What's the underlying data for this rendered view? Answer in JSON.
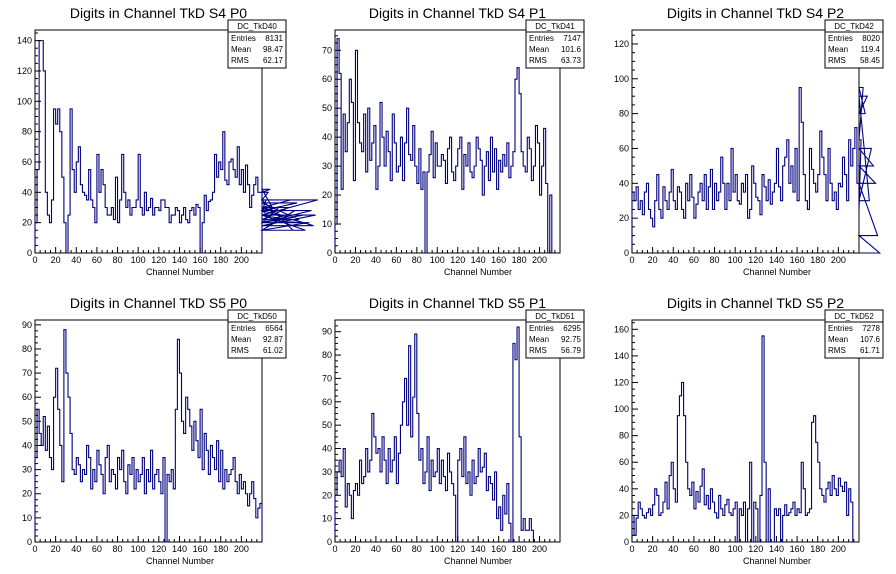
{
  "chart_data": [
    {
      "type": "histogram",
      "title": "Digits in Channel TkD S4 P0",
      "xlabel": "Channel Number",
      "ylabel": "",
      "xlim": [
        0,
        220
      ],
      "ylim": [
        0,
        147
      ],
      "xticks": [
        "0",
        "20",
        "40",
        "60",
        "80",
        "100",
        "120",
        "140",
        "160",
        "180",
        "200"
      ],
      "yticks": [
        "0",
        "20",
        "40",
        "60",
        "80",
        "100",
        "120",
        "140"
      ],
      "bin_width": 2,
      "color": "#000080",
      "stats": {
        "name": "DC_TkD40",
        "rows": [
          [
            "Entries",
            "8131"
          ],
          [
            "Mean",
            "98.47"
          ],
          [
            "RMS",
            "62.17"
          ]
        ]
      },
      "values": [
        20,
        55,
        140,
        140,
        120,
        40,
        25,
        20,
        35,
        95,
        85,
        95,
        80,
        50,
        20,
        0,
        25,
        95,
        55,
        40,
        60,
        70,
        45,
        40,
        38,
        35,
        55,
        35,
        30,
        20,
        65,
        40,
        55,
        45,
        30,
        25,
        25,
        30,
        22,
        50,
        20,
        35,
        65,
        40,
        30,
        35,
        25,
        30,
        30,
        35,
        65,
        30,
        25,
        40,
        28,
        30,
        36,
        25,
        30,
        30,
        28,
        35,
        35,
        30,
        30,
        20,
        25,
        25,
        30,
        28,
        20,
        25,
        30,
        22,
        20,
        28,
        30,
        25,
        32,
        30,
        0,
        20,
        38,
        28,
        34,
        35,
        40,
        65,
        50,
        60,
        55,
        80,
        48,
        45,
        60,
        62,
        55,
        50,
        70,
        45,
        55,
        40,
        58,
        45,
        30,
        38,
        45,
        50,
        40,
        40,
        30,
        28,
        35,
        40,
        42,
        30,
        28,
        20,
        30,
        25,
        20,
        25,
        22,
        30,
        35,
        15,
        28,
        33,
        22,
        20,
        25,
        15,
        20,
        20,
        28,
        18,
        25,
        35
      ]
    },
    {
      "type": "histogram",
      "title": "Digits in Channel TkD S4 P1",
      "xlabel": "Channel Number",
      "ylabel": "",
      "xlim": [
        0,
        220
      ],
      "ylim": [
        0,
        77
      ],
      "xticks": [
        "0",
        "20",
        "40",
        "60",
        "80",
        "100",
        "120",
        "140",
        "160",
        "180",
        "200"
      ],
      "yticks": [
        "0",
        "10",
        "20",
        "30",
        "40",
        "50",
        "60",
        "70"
      ],
      "bin_width": 2,
      "color": "#000080",
      "stats": {
        "name": "DC_TkD41",
        "rows": [
          [
            "Entries",
            "7147"
          ],
          [
            "Mean",
            "101.6"
          ],
          [
            "RMS",
            "63.73"
          ]
        ]
      },
      "values": [
        10,
        74,
        62,
        22,
        48,
        35,
        45,
        60,
        52,
        25,
        70,
        45,
        38,
        35,
        48,
        28,
        50,
        32,
        38,
        44,
        22,
        30,
        52,
        40,
        30,
        42,
        35,
        25,
        48,
        38,
        28,
        30,
        40,
        25,
        38,
        50,
        34,
        32,
        44,
        30,
        24,
        36,
        22,
        28,
        0,
        28,
        34,
        42,
        26,
        38,
        30,
        30,
        34,
        32,
        24,
        36,
        40,
        28,
        25,
        30,
        36,
        40,
        22,
        34,
        30,
        38,
        28,
        26,
        30,
        40,
        36,
        32,
        20,
        30,
        35,
        25,
        40,
        28,
        36,
        22,
        32,
        28,
        34,
        30,
        38,
        26,
        30,
        35,
        60,
        64,
        55,
        35,
        30,
        28,
        40,
        36,
        25,
        30,
        44,
        38,
        20,
        30,
        43,
        24,
        0,
        20
      ]
    },
    {
      "type": "histogram",
      "title": "Digits in Channel TkD S4 P2",
      "xlabel": "Channel Number",
      "ylabel": "",
      "xlim": [
        0,
        220
      ],
      "ylim": [
        0,
        128
      ],
      "xticks": [
        "0",
        "20",
        "40",
        "60",
        "80",
        "100",
        "120",
        "140",
        "160",
        "180",
        "200"
      ],
      "yticks": [
        "0",
        "20",
        "40",
        "60",
        "80",
        "100",
        "120"
      ],
      "bin_width": 2,
      "color": "#000080",
      "stats": {
        "name": "DC_TkD42",
        "rows": [
          [
            "Entries",
            "8020"
          ],
          [
            "Mean",
            "119.4"
          ],
          [
            "RMS",
            "58.45"
          ]
        ]
      },
      "values": [
        35,
        30,
        38,
        25,
        30,
        22,
        35,
        40,
        25,
        20,
        15,
        30,
        45,
        25,
        20,
        38,
        30,
        25,
        35,
        48,
        30,
        25,
        38,
        35,
        25,
        20,
        40,
        30,
        45,
        32,
        20,
        28,
        35,
        40,
        30,
        45,
        25,
        38,
        48,
        25,
        40,
        30,
        35,
        55,
        40,
        25,
        40,
        30,
        60,
        35,
        45,
        30,
        28,
        40,
        35,
        45,
        20,
        25,
        50,
        40,
        32,
        30,
        22,
        45,
        38,
        30,
        42,
        28,
        35,
        40,
        60,
        38,
        30,
        50,
        55,
        65,
        40,
        50,
        35,
        60,
        30,
        95,
        75,
        45,
        30,
        25,
        60,
        48,
        40,
        35,
        45,
        70,
        55,
        45,
        30,
        60,
        40,
        30,
        35,
        25,
        40,
        38,
        55,
        45,
        30,
        65,
        50,
        60,
        72,
        40,
        25,
        65,
        95,
        80,
        90,
        30,
        60,
        50,
        40,
        10,
        0
      ]
    },
    {
      "type": "histogram",
      "title": "Digits in Channel TkD S5 P0",
      "xlabel": "Channel Number",
      "ylabel": "",
      "xlim": [
        0,
        220
      ],
      "ylim": [
        0,
        92
      ],
      "xticks": [
        "0",
        "20",
        "40",
        "60",
        "80",
        "100",
        "120",
        "140",
        "160",
        "180",
        "200"
      ],
      "yticks": [
        "0",
        "10",
        "20",
        "30",
        "40",
        "50",
        "60",
        "70",
        "80",
        "90"
      ],
      "bin_width": 2,
      "color": "#000080",
      "stats": {
        "name": "DC_TkD50",
        "rows": [
          [
            "Entries",
            "6564"
          ],
          [
            "Mean",
            "92.87"
          ],
          [
            "RMS",
            "61.02"
          ]
        ]
      },
      "values": [
        35,
        55,
        45,
        40,
        52,
        38,
        48,
        35,
        30,
        60,
        72,
        55,
        40,
        25,
        88,
        70,
        60,
        45,
        30,
        28,
        35,
        32,
        25,
        30,
        28,
        40,
        35,
        22,
        30,
        25,
        38,
        32,
        28,
        20,
        35,
        40,
        25,
        30,
        28,
        22,
        35,
        30,
        38,
        25,
        20,
        32,
        28,
        35,
        22,
        30,
        25,
        28,
        35,
        20,
        30,
        25,
        38,
        22,
        28,
        30,
        25,
        20,
        35,
        0,
        28,
        25,
        30,
        22,
        55,
        84,
        70,
        50,
        45,
        60,
        55,
        48,
        38,
        50,
        42,
        35,
        55,
        30,
        45,
        38,
        28,
        40,
        35,
        30,
        42,
        25,
        38,
        22,
        30,
        25,
        28,
        30,
        35,
        25,
        20,
        28,
        22,
        25,
        20,
        15,
        20,
        25,
        18,
        10,
        14,
        16
      ]
    },
    {
      "type": "histogram",
      "title": "Digits in Channel TkD S5 P1",
      "xlabel": "Channel Number",
      "ylabel": "",
      "xlim": [
        0,
        220
      ],
      "ylim": [
        0,
        95
      ],
      "xticks": [
        "0",
        "20",
        "40",
        "60",
        "80",
        "100",
        "120",
        "140",
        "160",
        "180",
        "200"
      ],
      "yticks": [
        "0",
        "10",
        "20",
        "30",
        "40",
        "50",
        "60",
        "70",
        "80",
        "90"
      ],
      "bin_width": 2,
      "color": "#000080",
      "stats": {
        "name": "DC_TkD51",
        "rows": [
          [
            "Entries",
            "6295"
          ],
          [
            "Mean",
            "92.75"
          ],
          [
            "RMS",
            "56.79"
          ]
        ]
      },
      "values": [
        20,
        30,
        35,
        28,
        40,
        15,
        25,
        20,
        10,
        22,
        25,
        20,
        35,
        25,
        28,
        40,
        30,
        35,
        55,
        45,
        38,
        40,
        30,
        45,
        35,
        25,
        40,
        30,
        35,
        45,
        25,
        38,
        50,
        60,
        70,
        50,
        84,
        45,
        62,
        89,
        55,
        35,
        40,
        25,
        30,
        45,
        22,
        35,
        28,
        30,
        40,
        25,
        35,
        28,
        22,
        38,
        30,
        25,
        20,
        0,
        35,
        40,
        28,
        45,
        25,
        30,
        20,
        35,
        25,
        28,
        40,
        30,
        32,
        38,
        22,
        28,
        25,
        18,
        30,
        10,
        15,
        5,
        20,
        12,
        25,
        8,
        0,
        85,
        78,
        92,
        45,
        5,
        10,
        5,
        5,
        10,
        5,
        0
      ]
    },
    {
      "type": "histogram",
      "title": "Digits in Channel TkD S5 P2",
      "xlabel": "Channel Number",
      "ylabel": "",
      "xlim": [
        0,
        220
      ],
      "ylim": [
        0,
        167
      ],
      "xticks": [
        "0",
        "20",
        "40",
        "60",
        "80",
        "100",
        "120",
        "140",
        "160",
        "180",
        "200"
      ],
      "yticks": [
        "0",
        "20",
        "40",
        "60",
        "80",
        "100",
        "120",
        "140",
        "160"
      ],
      "bin_width": 2,
      "color": "#000080",
      "stats": {
        "name": "DC_TkD52",
        "rows": [
          [
            "Entries",
            "7278"
          ],
          [
            "Mean",
            "107.6"
          ],
          [
            "RMS",
            "61.71"
          ]
        ]
      },
      "values": [
        20,
        5,
        18,
        30,
        25,
        20,
        18,
        22,
        25,
        20,
        28,
        40,
        35,
        20,
        22,
        30,
        45,
        25,
        50,
        60,
        40,
        30,
        95,
        110,
        120,
        95,
        60,
        40,
        35,
        45,
        25,
        38,
        30,
        42,
        55,
        28,
        35,
        25,
        40,
        30,
        22,
        18,
        35,
        25,
        20,
        28,
        32,
        22,
        20,
        25,
        30,
        0,
        25,
        20,
        30,
        0,
        25,
        60,
        0,
        30,
        25,
        0,
        35,
        155,
        60,
        0,
        40,
        0,
        0,
        25,
        20,
        25,
        0,
        20,
        28,
        20,
        22,
        25,
        30,
        20,
        25,
        22,
        60,
        40,
        20,
        22,
        25,
        90,
        95,
        75,
        60,
        40,
        35,
        30,
        40,
        45,
        35,
        50,
        40,
        35,
        48,
        42,
        38,
        45,
        20,
        40,
        30
      ]
    }
  ]
}
